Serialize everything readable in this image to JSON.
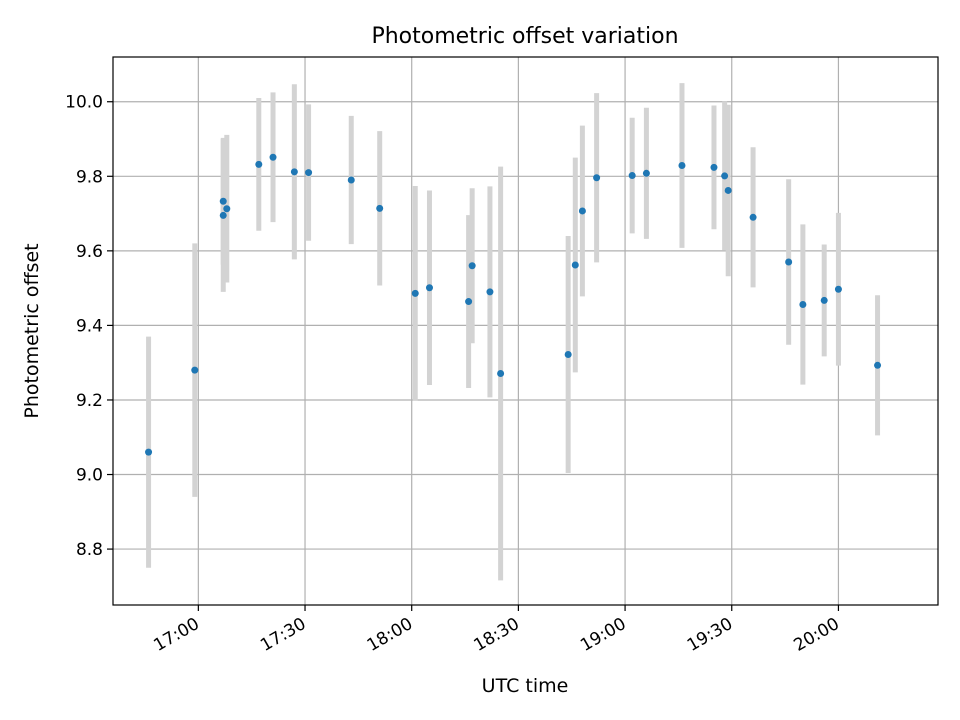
{
  "chart_data": {
    "type": "scatter",
    "title": "Photometric offset variation",
    "xlabel": "UTC time",
    "ylabel": "Photometric offset",
    "x_unit": "HH:MM UTC",
    "xlim": [
      "16:36",
      "20:28"
    ],
    "ylim": [
      8.65,
      10.12
    ],
    "grid": true,
    "x_ticks": [
      "17:00",
      "17:30",
      "18:00",
      "18:30",
      "19:00",
      "19:30",
      "20:00"
    ],
    "y_ticks": [
      "8.8",
      "9.0",
      "9.2",
      "9.4",
      "9.6",
      "9.8",
      "10.0"
    ],
    "marker_color": "#1f77b4",
    "errorbar_color": "#d3d3d3",
    "points": [
      {
        "t": "16:46",
        "y": 9.06,
        "err": 0.31
      },
      {
        "t": "16:59",
        "y": 9.28,
        "err": 0.34
      },
      {
        "t": "17:07",
        "y": 9.695,
        "err": 0.205
      },
      {
        "t": "17:07",
        "y": 9.733,
        "err": 0.17
      },
      {
        "t": "17:08",
        "y": 9.713,
        "err": 0.198
      },
      {
        "t": "17:17",
        "y": 9.832,
        "err": 0.178
      },
      {
        "t": "17:21",
        "y": 9.851,
        "err": 0.174
      },
      {
        "t": "17:27",
        "y": 9.812,
        "err": 0.235
      },
      {
        "t": "17:31",
        "y": 9.81,
        "err": 0.183
      },
      {
        "t": "17:43",
        "y": 9.79,
        "err": 0.172
      },
      {
        "t": "17:51",
        "y": 9.714,
        "err": 0.207
      },
      {
        "t": "18:01",
        "y": 9.486,
        "err": 0.288
      },
      {
        "t": "18:05",
        "y": 9.501,
        "err": 0.261
      },
      {
        "t": "18:16",
        "y": 9.464,
        "err": 0.232
      },
      {
        "t": "18:17",
        "y": 9.56,
        "err": 0.208
      },
      {
        "t": "18:22",
        "y": 9.49,
        "err": 0.283
      },
      {
        "t": "18:25",
        "y": 9.271,
        "err": 0.555
      },
      {
        "t": "18:44",
        "y": 9.322,
        "err": 0.318
      },
      {
        "t": "18:46",
        "y": 9.562,
        "err": 0.288
      },
      {
        "t": "18:48",
        "y": 9.707,
        "err": 0.229
      },
      {
        "t": "18:52",
        "y": 9.796,
        "err": 0.227
      },
      {
        "t": "19:02",
        "y": 9.802,
        "err": 0.155
      },
      {
        "t": "19:06",
        "y": 9.808,
        "err": 0.176
      },
      {
        "t": "19:16",
        "y": 9.829,
        "err": 0.221
      },
      {
        "t": "19:25",
        "y": 9.824,
        "err": 0.166
      },
      {
        "t": "19:28",
        "y": 9.801,
        "err": 0.2
      },
      {
        "t": "19:29",
        "y": 9.762,
        "err": 0.23
      },
      {
        "t": "19:36",
        "y": 9.69,
        "err": 0.188
      },
      {
        "t": "19:46",
        "y": 9.57,
        "err": 0.222
      },
      {
        "t": "19:50",
        "y": 9.456,
        "err": 0.215
      },
      {
        "t": "19:56",
        "y": 9.467,
        "err": 0.15
      },
      {
        "t": "20:00",
        "y": 9.497,
        "err": 0.205
      },
      {
        "t": "20:11",
        "y": 9.293,
        "err": 0.188
      }
    ]
  }
}
